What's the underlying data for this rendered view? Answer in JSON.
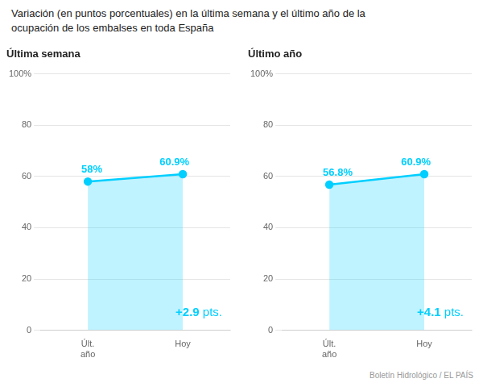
{
  "title": "Variación (en puntos porcentuales) en la última semana y el último año de la\nocupación de los embalses en toda España",
  "annotations": [
    "Boletín Hidrológico / EL PAÍS"
  ],
  "chart_data": [
    {
      "type": "line",
      "title": "Última semana",
      "categories": [
        "Últ.\naño",
        "Hoy"
      ],
      "values": [
        58.0,
        60.9
      ],
      "value_labels": [
        "58%",
        "60.9%"
      ],
      "data_labels": true,
      "color": "#00CFFF",
      "annotations": [
        "+2.9 pts."
      ],
      "ylim": [
        0,
        100
      ],
      "yticks": [
        0,
        20,
        40,
        60,
        80,
        {
          "value": 100,
          "label": "100%"
        }
      ],
      "grid": true
    },
    {
      "type": "line",
      "title": "Último año",
      "categories": [
        "Últ.\naño",
        "Hoy"
      ],
      "values": [
        56.8,
        60.9
      ],
      "value_labels": [
        "56.8%",
        "60.9%"
      ],
      "data_labels": true,
      "color": "#00CFFF",
      "annotations": [
        "+4.1 pts."
      ],
      "ylim": [
        0,
        100
      ],
      "yticks": [
        0,
        20,
        40,
        60,
        80,
        {
          "value": 100,
          "label": "100%"
        }
      ],
      "grid": true
    }
  ]
}
